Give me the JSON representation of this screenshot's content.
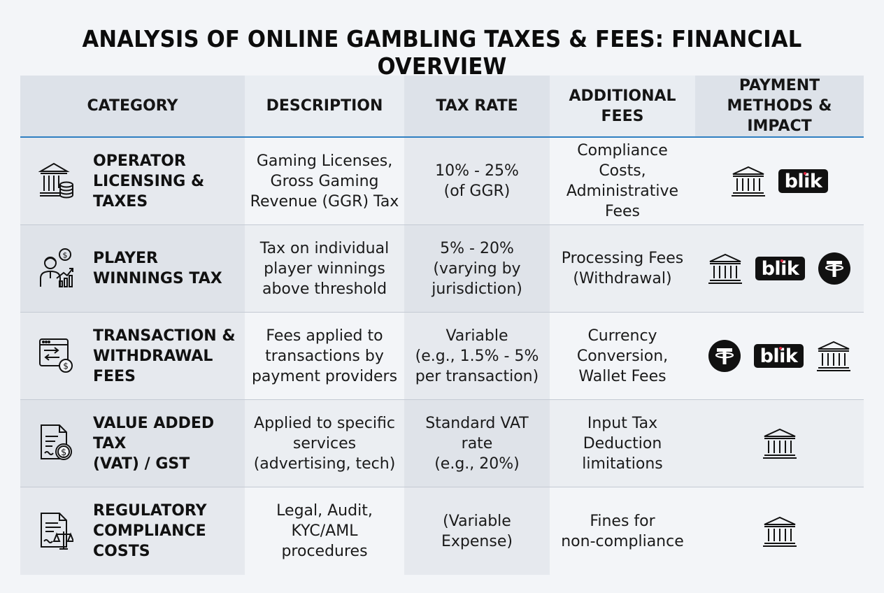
{
  "title": "ANALYSIS OF ONLINE GAMBLING TAXES & FEES: FINANCIAL OVERVIEW",
  "headers": {
    "category": "CATEGORY",
    "description": "DESCRIPTION",
    "tax_rate": "TAX RATE",
    "additional_fees": "ADDITIONAL\nFEES",
    "payment": "PAYMENT\nMETHODS & IMPACT"
  },
  "blik_label": "blik",
  "colors": {
    "header_rule": "#2f7fc1",
    "blik_dot": "#e3253f",
    "icon": "#111111"
  },
  "rows": [
    {
      "icon": "bank-coins-icon",
      "category": "OPERATOR\nLICENSING &\nTAXES",
      "description": "Gaming Licenses,\nGross Gaming\nRevenue (GGR) Tax",
      "tax_rate": "10% - 25%\n(of GGR)",
      "fees": "Compliance Costs,\nAdministrative\nFees",
      "payment_methods": [
        "bank-icon",
        "blik-logo"
      ]
    },
    {
      "icon": "player-winnings-icon",
      "category": "PLAYER\nWINNINGS TAX",
      "description": "Tax on individual\nplayer winnings\nabove threshold",
      "tax_rate": "5% - 20%\n(varying by\njurisdiction)",
      "fees": "Processing Fees\n(Withdrawal)",
      "payment_methods": [
        "bank-icon",
        "blik-logo",
        "tether-icon"
      ]
    },
    {
      "icon": "transaction-window-icon",
      "category": "TRANSACTION &\nWITHDRAWAL FEES",
      "description": "Fees applied to\ntransactions by\npayment providers",
      "tax_rate": "Variable\n(e.g., 1.5% - 5%\nper transaction)",
      "fees": "Currency\nConversion,\nWallet Fees",
      "payment_methods": [
        "tether-icon",
        "blik-logo",
        "bank-icon"
      ]
    },
    {
      "icon": "vat-document-icon",
      "category": "VALUE ADDED TAX\n(VAT) / GST",
      "description": "Applied to specific\nservices\n(advertising, tech)",
      "tax_rate": "Standard VAT\nrate\n(e.g., 20%)",
      "fees": "Input Tax\nDeduction\nlimitations",
      "payment_methods": [
        "bank-icon"
      ]
    },
    {
      "icon": "compliance-document-icon",
      "category": "REGULATORY\nCOMPLIANCE\nCOSTS",
      "description": "Legal, Audit,\nKYC/AML\nprocedures",
      "tax_rate": "(Variable\nExpense)",
      "fees": "Fines for\nnon-compliance",
      "payment_methods": [
        "bank-icon"
      ]
    }
  ]
}
